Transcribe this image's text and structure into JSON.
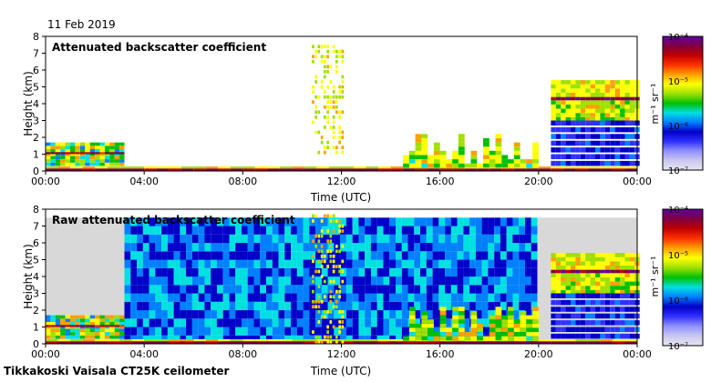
{
  "header": {
    "date": "11 Feb 2019"
  },
  "footer": {
    "site": "Tikkakoski Vaisala CT25K ceilometer"
  },
  "colors": {
    "colorbar_stops": [
      "#e6e6f2",
      "#c8c8f0",
      "#9090ff",
      "#3030ff",
      "#0000c8",
      "#0080ff",
      "#00e0e0",
      "#00c000",
      "#a0e000",
      "#ffff00",
      "#ffa000",
      "#ff3000",
      "#c00000",
      "#800040",
      "#6000a0"
    ]
  },
  "chart_data": [
    {
      "type": "heatmap",
      "title": "Attenuated backscatter coefficient",
      "xlabel": "Time (UTC)",
      "ylabel": "Height (km)",
      "x_ticks": [
        "00:00",
        "04:00",
        "08:00",
        "12:00",
        "16:00",
        "20:00",
        "00:00"
      ],
      "y_ticks": [
        "0",
        "1",
        "2",
        "3",
        "4",
        "5",
        "6",
        "7",
        "8"
      ],
      "ylim": [
        0,
        8
      ],
      "colorbar": {
        "unit": "m⁻¹ sr⁻¹",
        "ticks": [
          "10⁻⁷",
          "10⁻⁶",
          "10⁻⁵",
          "10⁻⁴"
        ],
        "range": [
          1e-07,
          0.0001
        ],
        "scale": "log"
      },
      "features": {
        "surface_layer": {
          "hour_range": [
            0,
            24
          ],
          "height_km": [
            0,
            0.3
          ]
        },
        "boundary_layer_clouds": {
          "hour_range": [
            0,
            3.2
          ],
          "height_km": [
            0.3,
            1.5
          ]
        },
        "precip_streaks": {
          "hour_range": [
            10.8,
            12.0
          ],
          "height_km": [
            1.0,
            7.4
          ]
        },
        "low_cloud_patches": {
          "hour_range": [
            14.5,
            19.8
          ],
          "height_km": [
            0.2,
            2.2
          ]
        },
        "cloud_deck": {
          "hour_range": [
            20.5,
            24
          ],
          "cloud_base_km": 4.2,
          "cloud_top_km": 5.3
        }
      }
    },
    {
      "type": "heatmap",
      "title": "Raw attenuated backscatter coefficient",
      "xlabel": "Time (UTC)",
      "ylabel": "Height (km)",
      "x_ticks": [
        "00:00",
        "04:00",
        "08:00",
        "12:00",
        "16:00",
        "20:00",
        "00:00"
      ],
      "y_ticks": [
        "0",
        "1",
        "2",
        "3",
        "4",
        "5",
        "6",
        "7",
        "8"
      ],
      "ylim": [
        0,
        8
      ],
      "colorbar": {
        "unit": "m⁻¹ sr⁻¹",
        "ticks": [
          "10⁻⁷",
          "10⁻⁶",
          "10⁻⁵",
          "10⁻⁴"
        ],
        "range": [
          1e-07,
          0.0001
        ],
        "scale": "log"
      },
      "features": {
        "noise_background": {
          "hour_range": [
            3.2,
            19.8
          ],
          "height_km": [
            0,
            7.5
          ]
        },
        "precip_streaks": {
          "hour_range": [
            10.8,
            12.0
          ],
          "height_km": [
            0,
            7.5
          ]
        },
        "cloud_deck": {
          "hour_range": [
            20.5,
            24
          ],
          "cloud_base_km": 4.2,
          "cloud_top_km": 5.3
        }
      }
    }
  ]
}
